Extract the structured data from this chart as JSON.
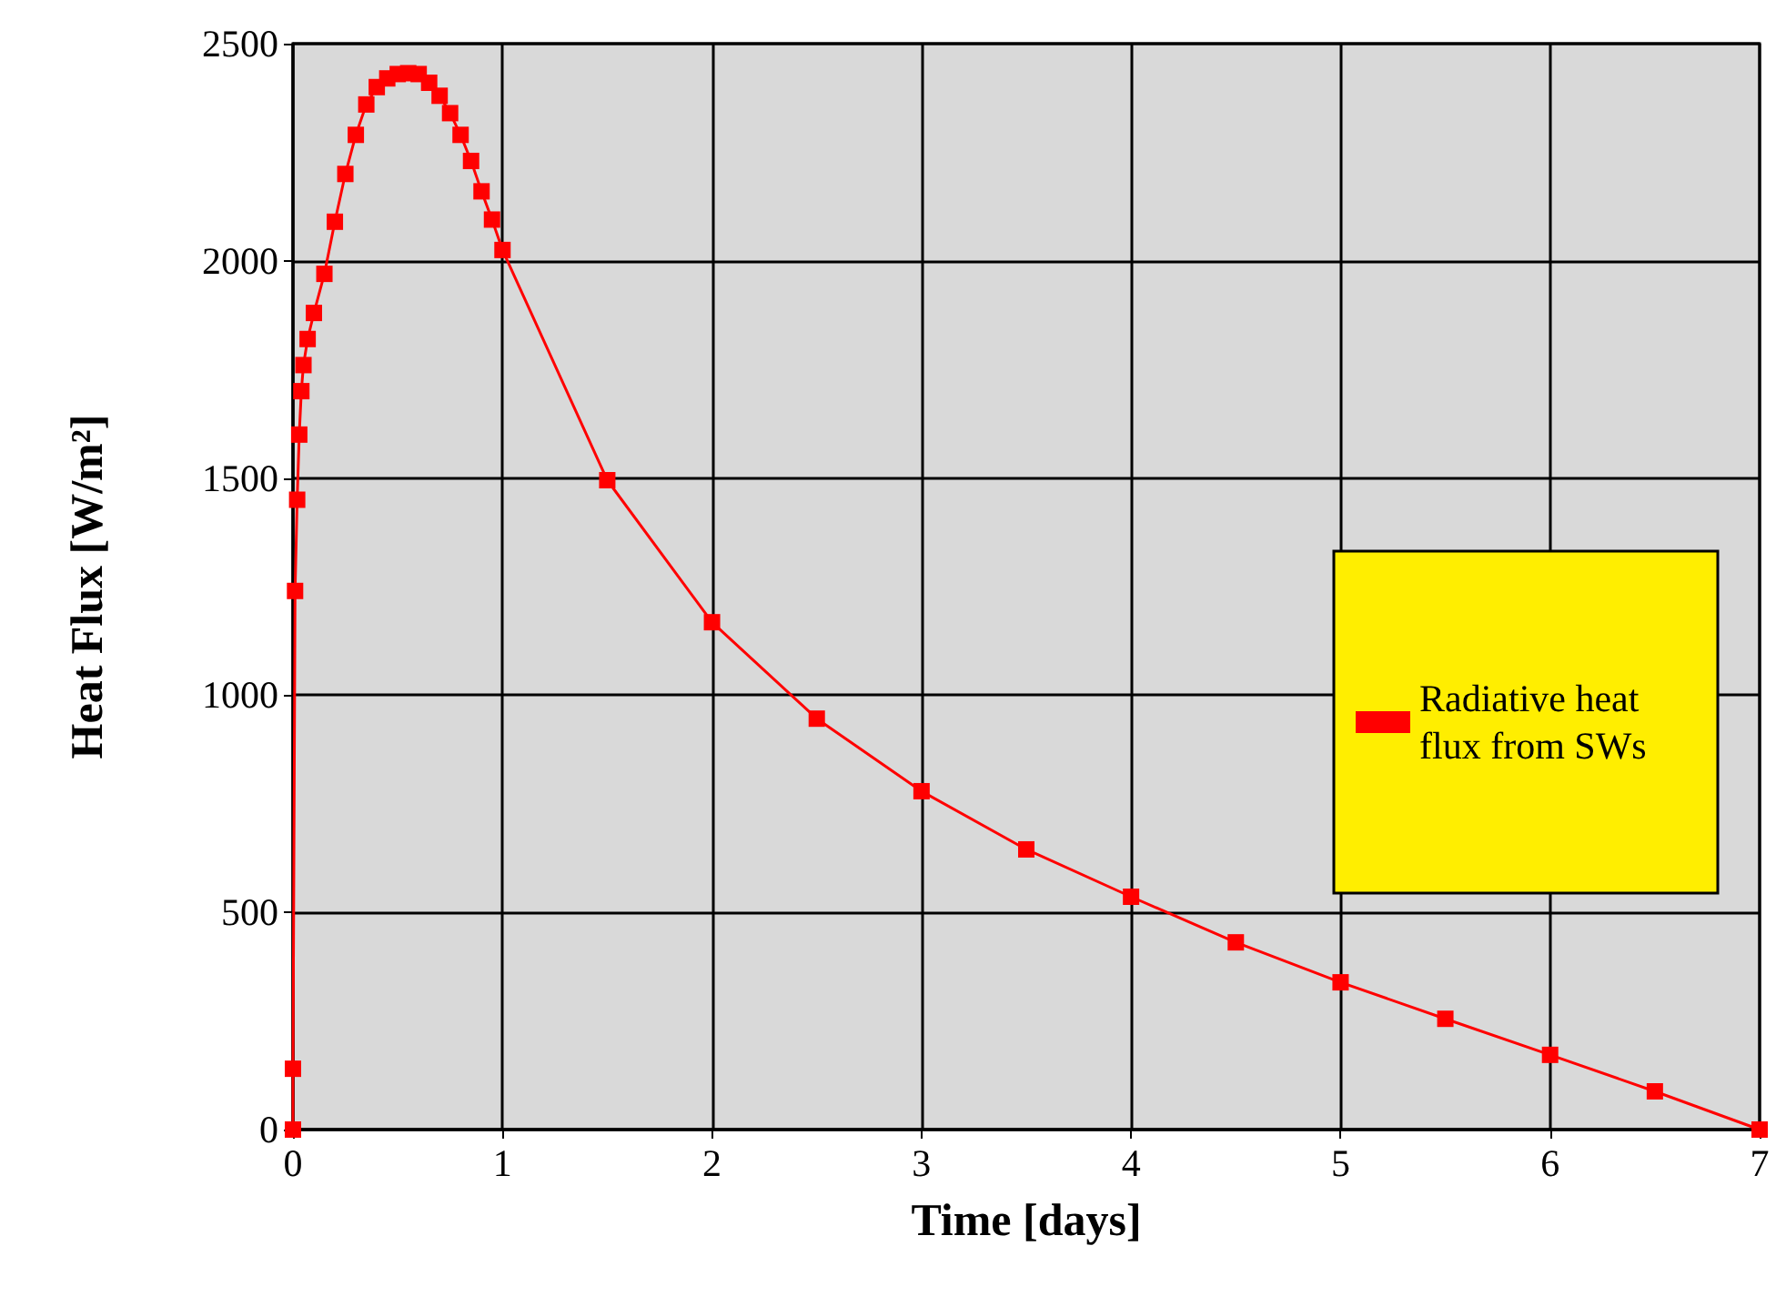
{
  "chart_data": {
    "type": "line",
    "xlabel": "Time [days]",
    "ylabel": "Heat Flux [W/m²]",
    "series": [
      {
        "name": "Radiative heat flux from SWs",
        "color": "#ff0000",
        "x": [
          0,
          0,
          0.01,
          0.02,
          0.03,
          0.04,
          0.05,
          0.07,
          0.1,
          0.15,
          0.2,
          0.25,
          0.3,
          0.35,
          0.4,
          0.45,
          0.5,
          0.55,
          0.6,
          0.65,
          0.7,
          0.75,
          0.8,
          0.85,
          0.9,
          0.95,
          1,
          1.5,
          2,
          2.5,
          3,
          3.5,
          4,
          4.5,
          5,
          5.5,
          6,
          6.5,
          7
        ],
        "values": [
          0,
          140,
          1240,
          1450,
          1600,
          1700,
          1760,
          1820,
          1880,
          1970,
          2090,
          2200,
          2290,
          2360,
          2400,
          2420,
          2430,
          2432,
          2430,
          2410,
          2380,
          2340,
          2290,
          2230,
          2160,
          2095,
          2025,
          1495,
          1168,
          946,
          779,
          645,
          536,
          431,
          339,
          255,
          172,
          88,
          0
        ]
      }
    ],
    "xlim": [
      0,
      7
    ],
    "xticks": [
      0,
      1,
      2,
      3,
      4,
      5,
      6,
      7
    ],
    "ylim": [
      0,
      2500
    ],
    "yticks": [
      0,
      500,
      1000,
      1500,
      2000,
      2500
    ],
    "grid": true,
    "legend": "right",
    "marker": "square",
    "line_style": "solid"
  }
}
